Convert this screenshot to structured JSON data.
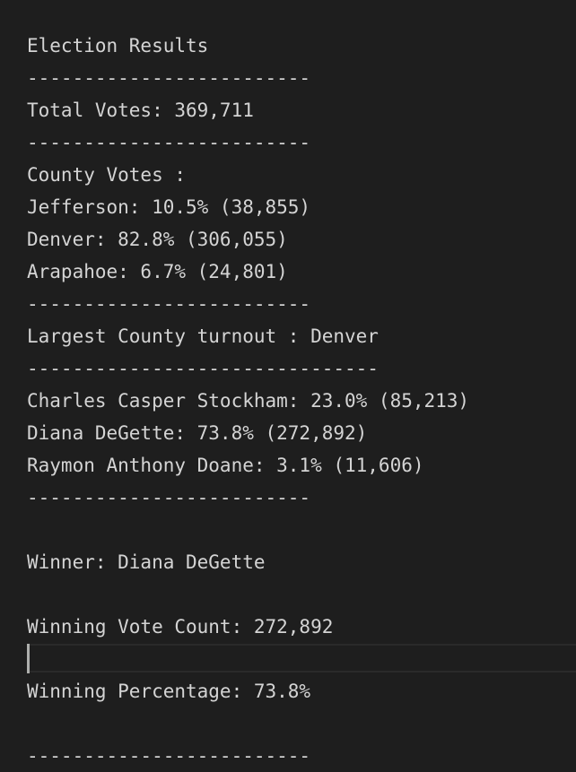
{
  "output": {
    "title": "Election Results",
    "separator_short": "-------------------------",
    "separator_long": "-------------------------------",
    "total_votes": "Total Votes: 369,711",
    "county_votes_header": "County Votes :",
    "counties": [
      "Jefferson: 10.5% (38,855)",
      "Denver: 82.8% (306,055)",
      "Arapahoe: 6.7% (24,801)"
    ],
    "largest_county": "Largest County turnout : Denver",
    "candidates": [
      "Charles Casper Stockham: 23.0% (85,213)",
      "Diana DeGette: 73.8% (272,892)",
      "Raymon Anthony Doane: 3.1% (11,606)"
    ],
    "winner": "Winner: Diana DeGette",
    "winning_vote_count": "Winning Vote Count: 272,892",
    "winning_percentage": "Winning Percentage: 73.8%"
  }
}
